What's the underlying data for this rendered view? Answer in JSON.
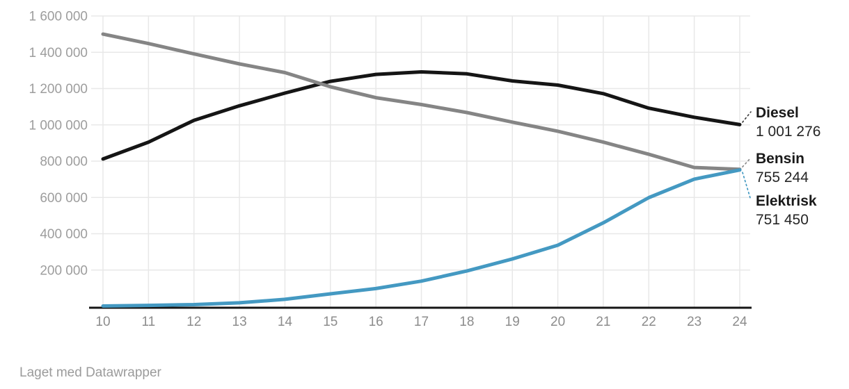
{
  "chart_data": {
    "type": "line",
    "title": "",
    "xlabel": "",
    "ylabel": "",
    "grid": "on",
    "legend_position": "end-of-line-labels-right",
    "ylim": [
      0,
      1600000
    ],
    "x_values": [
      10,
      11,
      12,
      13,
      14,
      15,
      16,
      17,
      18,
      19,
      20,
      21,
      22,
      23,
      24
    ],
    "x_tick_labels": [
      "10",
      "11",
      "12",
      "13",
      "14",
      "15",
      "16",
      "17",
      "18",
      "19",
      "20",
      "21",
      "22",
      "23",
      "24"
    ],
    "y_ticks": [
      {
        "value": 200000,
        "label": "200 000"
      },
      {
        "value": 400000,
        "label": "400 000"
      },
      {
        "value": 600000,
        "label": "600 000"
      },
      {
        "value": 800000,
        "label": "800 000"
      },
      {
        "value": 1000000,
        "label": "1 000 000"
      },
      {
        "value": 1200000,
        "label": "1 200 000"
      },
      {
        "value": 1400000,
        "label": "1 400 000"
      },
      {
        "value": 1600000,
        "label": "1 600 000"
      }
    ],
    "series": [
      {
        "name": "Diesel",
        "color": "#151515",
        "leader_color": "#3f3f3f",
        "end_value_label": "1 001 276",
        "values": [
          812000,
          905000,
          1025000,
          1105000,
          1175000,
          1240000,
          1278000,
          1292000,
          1281000,
          1242000,
          1219000,
          1172000,
          1092000,
          1042000,
          1001276
        ]
      },
      {
        "name": "Bensin",
        "color": "#858585",
        "leader_color": "#8a8a8a",
        "end_value_label": "755 244",
        "values": [
          1500000,
          1448000,
          1391000,
          1336000,
          1288000,
          1210000,
          1150000,
          1112000,
          1068000,
          1015000,
          965000,
          905000,
          838000,
          765000,
          755244
        ]
      },
      {
        "name": "Elektrisk",
        "color": "#4499c2",
        "leader_color": "#4499c2",
        "end_value_label": "751 450",
        "values": [
          2100,
          5400,
          9600,
          19700,
          38700,
          69000,
          98000,
          139000,
          195000,
          261000,
          337000,
          460000,
          599000,
          701000,
          751450
        ]
      }
    ]
  },
  "colors": {
    "grid": "#e8e8e8",
    "axis_line": "#161616",
    "y_label": "#9d9d9d",
    "x_label": "#8c8c8c",
    "footer_text": "#9b9b9b"
  },
  "footer": {
    "credit": "Laget med Datawrapper"
  }
}
